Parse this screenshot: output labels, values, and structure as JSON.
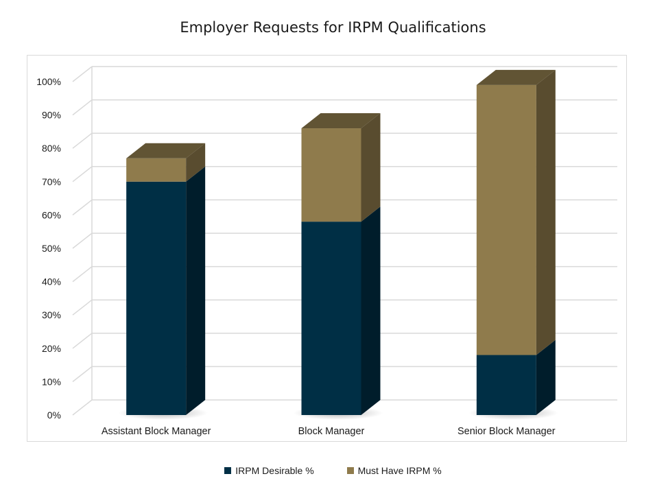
{
  "chart_data": {
    "type": "bar",
    "stacked": true,
    "three_d": true,
    "title": "Employer Requests for IRPM Qualifications",
    "categories": [
      "Assistant Block Manager",
      "Block Manager",
      "Senior Block Manager"
    ],
    "series": [
      {
        "name": "IRPM Desirable %",
        "values": [
          70,
          58,
          18
        ],
        "color": "#002f45"
      },
      {
        "name": "Must Have IRPM %",
        "values": [
          7,
          28,
          81
        ],
        "color": "#8f7b4c"
      }
    ],
    "yticks": [
      "0%",
      "10%",
      "20%",
      "30%",
      "40%",
      "50%",
      "60%",
      "70%",
      "80%",
      "90%",
      "100%"
    ],
    "ylim": [
      0,
      100
    ],
    "grid": true,
    "legend_position": "bottom"
  }
}
